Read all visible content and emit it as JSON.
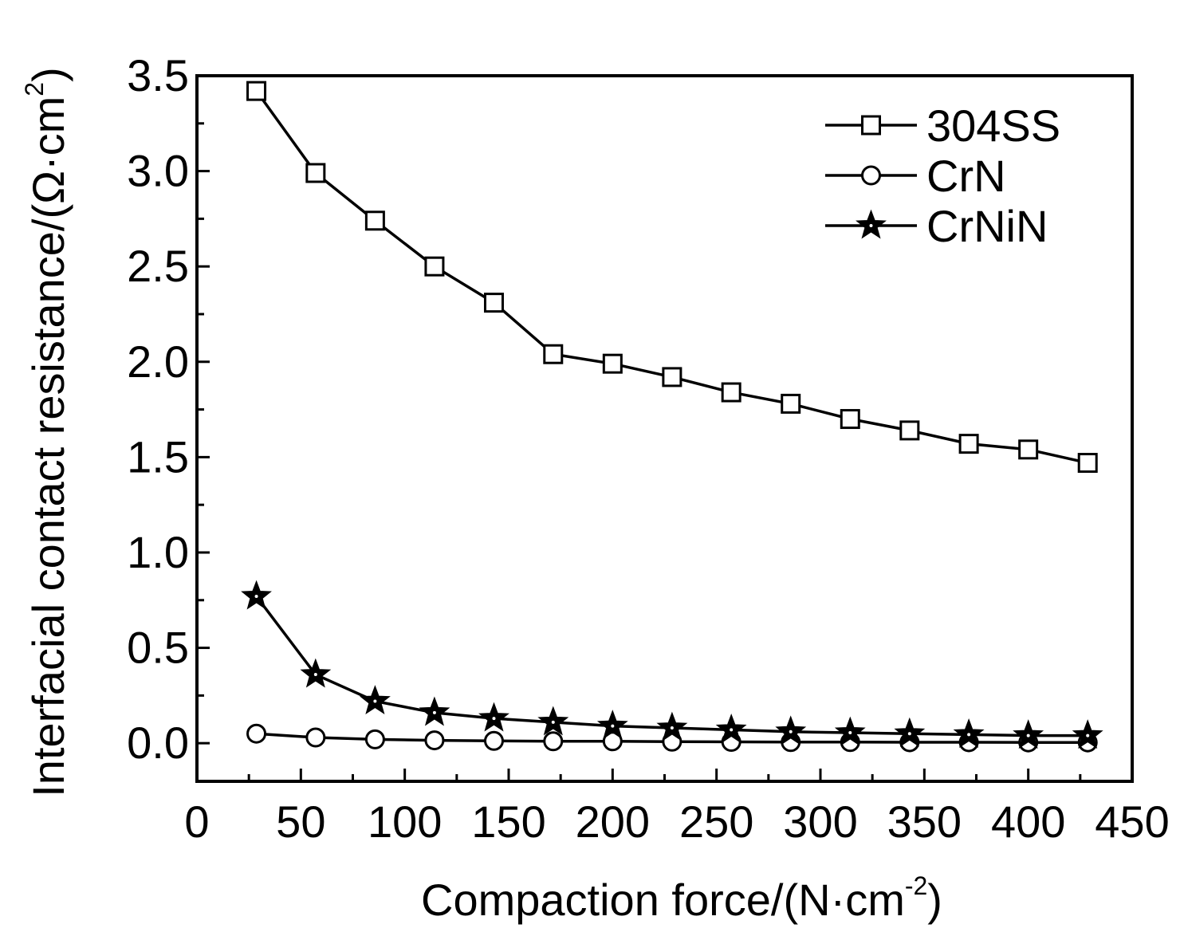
{
  "chart_data": {
    "type": "line",
    "title": "",
    "xlabel": "Compaction force/(N·cm",
    "xlabel_superscript": "-2",
    "xlabel_tail": ")",
    "ylabel": "Interfacial contact resistance/(Ω·cm",
    "ylabel_superscript": "2",
    "ylabel_tail": ")",
    "xlim": [
      0,
      450
    ],
    "ylim": [
      -0.2,
      3.5
    ],
    "x_ticks": [
      0,
      50,
      100,
      150,
      200,
      250,
      300,
      350,
      400,
      450
    ],
    "x_tick_labels": [
      "0",
      "50",
      "100",
      "150",
      "200",
      "250",
      "300",
      "350",
      "400",
      "450"
    ],
    "y_ticks": [
      0.0,
      0.5,
      1.0,
      1.5,
      2.0,
      2.5,
      3.0,
      3.5
    ],
    "y_tick_labels": [
      "0.0",
      "0.5",
      "1.0",
      "1.5",
      "2.0",
      "2.5",
      "3.0",
      "3.5"
    ],
    "grid": false,
    "legend_position": "top-right",
    "x": [
      28.6,
      57.1,
      85.7,
      114.3,
      142.9,
      171.4,
      200,
      228.6,
      257.1,
      285.7,
      314.3,
      342.9,
      371.4,
      400,
      428.6
    ],
    "series": [
      {
        "name": "304SS",
        "marker": "square",
        "color": "#000000",
        "values": [
          3.42,
          2.99,
          2.74,
          2.5,
          2.31,
          2.04,
          1.99,
          1.92,
          1.84,
          1.78,
          1.7,
          1.64,
          1.57,
          1.54,
          1.47
        ]
      },
      {
        "name": "CrN",
        "marker": "circle",
        "color": "#000000",
        "values": [
          0.05,
          0.03,
          0.02,
          0.015,
          0.012,
          0.01,
          0.01,
          0.008,
          0.007,
          0.006,
          0.006,
          0.005,
          0.005,
          0.004,
          0.004
        ]
      },
      {
        "name": "CrNiN",
        "marker": "star",
        "color": "#000000",
        "values": [
          0.77,
          0.36,
          0.22,
          0.16,
          0.13,
          0.11,
          0.09,
          0.08,
          0.07,
          0.06,
          0.055,
          0.05,
          0.045,
          0.04,
          0.04
        ]
      }
    ]
  }
}
